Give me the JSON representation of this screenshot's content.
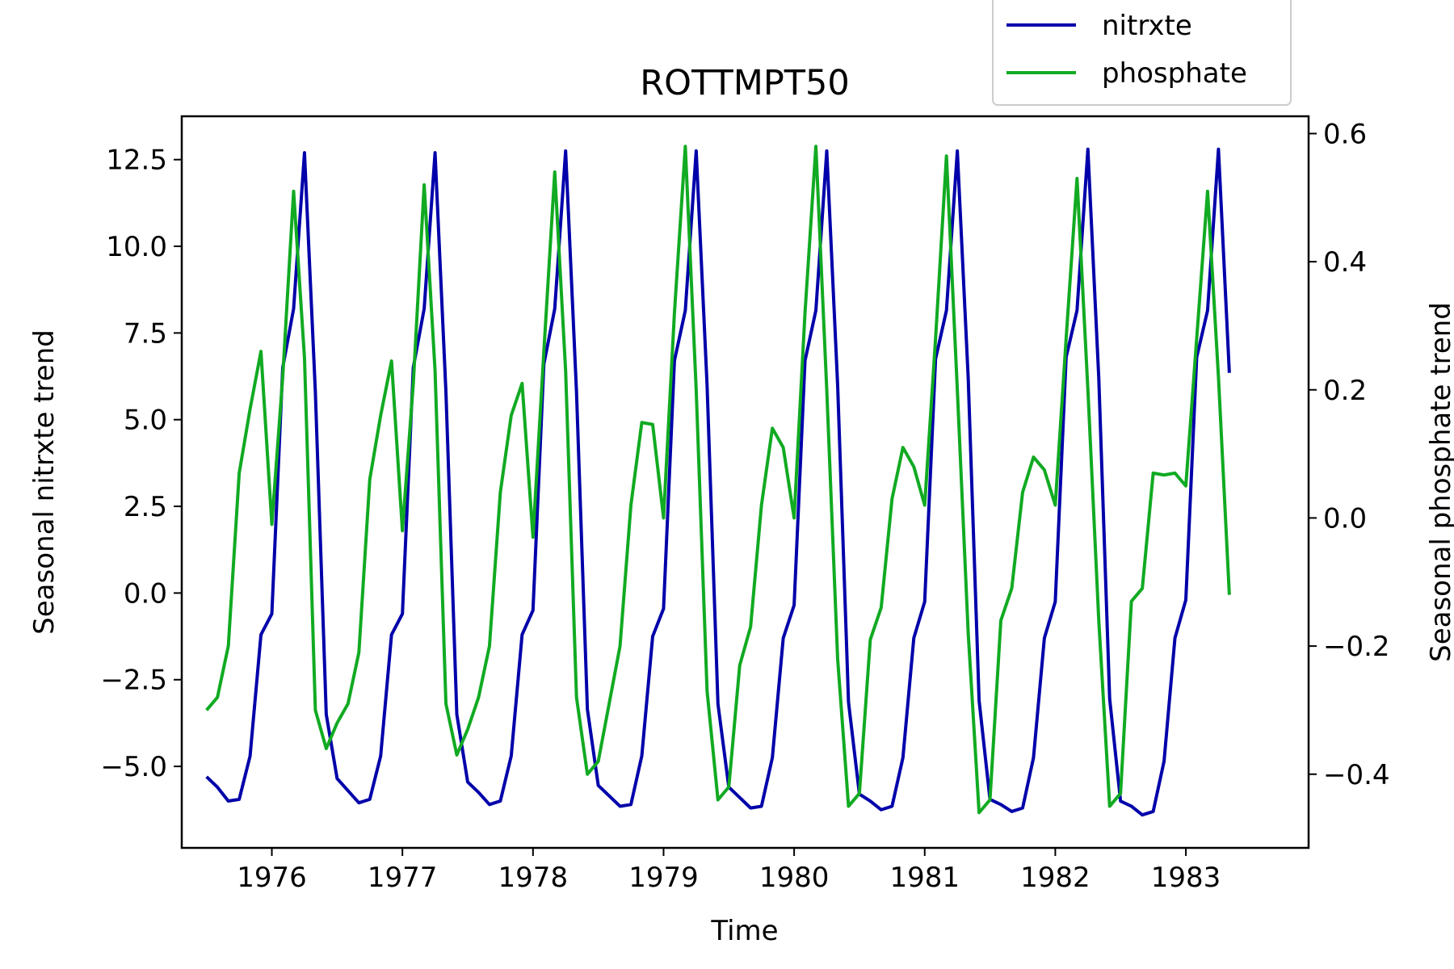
{
  "chart_data": {
    "type": "line",
    "title": "ROTTMPT50",
    "xlabel": "Time",
    "ylabel_left": "Seasonal nitrxte trend",
    "ylabel_right": "Seasonal phosphate trend",
    "xlim": [
      1975.31,
      1983.94
    ],
    "ylim_left": [
      -7.35,
      13.75
    ],
    "ylim_right": [
      -0.515,
      0.627
    ],
    "x_ticks": [
      1976,
      1977,
      1978,
      1979,
      1980,
      1981,
      1982,
      1983
    ],
    "x_tick_labels": [
      "1976",
      "1977",
      "1978",
      "1979",
      "1980",
      "1981",
      "1982",
      "1983"
    ],
    "y_left_ticks": [
      -5.0,
      -2.5,
      0.0,
      2.5,
      5.0,
      7.5,
      10.0,
      12.5
    ],
    "y_left_tick_labels": [
      "−5.0",
      "−2.5",
      "0.0",
      "2.5",
      "5.0",
      "7.5",
      "10.0",
      "12.5"
    ],
    "y_right_ticks": [
      -0.4,
      -0.2,
      0.0,
      0.2,
      0.4,
      0.6
    ],
    "y_right_tick_labels": [
      "−0.4",
      "−0.2",
      "0.0",
      "0.2",
      "0.4",
      "0.6"
    ],
    "grid": false,
    "legend_position": "top-right",
    "x_start": 1975.5,
    "x_step": 0.08333,
    "series": [
      {
        "name": "nitrxte",
        "color": "#0000aa",
        "axis": "left",
        "values": [
          -5.3,
          -5.6,
          -6.0,
          -5.95,
          -4.7,
          -1.2,
          -0.6,
          6.5,
          8.2,
          12.7,
          5.8,
          -3.5,
          -5.35,
          -5.7,
          -6.05,
          -5.95,
          -4.7,
          -1.2,
          -0.6,
          6.5,
          8.2,
          12.7,
          5.8,
          -3.5,
          -5.45,
          -5.75,
          -6.1,
          -6.0,
          -4.7,
          -1.2,
          -0.5,
          6.6,
          8.2,
          12.75,
          5.8,
          -3.35,
          -5.55,
          -5.85,
          -6.15,
          -6.1,
          -4.7,
          -1.25,
          -0.45,
          6.7,
          8.15,
          12.75,
          6.0,
          -3.2,
          -5.6,
          -5.9,
          -6.2,
          -6.15,
          -4.75,
          -1.3,
          -0.35,
          6.7,
          8.15,
          12.75,
          6.0,
          -3.15,
          -5.8,
          -6.0,
          -6.25,
          -6.15,
          -4.75,
          -1.3,
          -0.25,
          6.75,
          8.15,
          12.75,
          6.2,
          -3.1,
          -5.95,
          -6.1,
          -6.3,
          -6.2,
          -4.75,
          -1.3,
          -0.25,
          6.8,
          8.15,
          12.8,
          6.2,
          -3.05,
          -6.0,
          -6.15,
          -6.4,
          -6.3,
          -4.85,
          -1.3,
          -0.2,
          6.8,
          8.15,
          12.8,
          6.35
        ]
      },
      {
        "name": "phosphate",
        "color": "#11aa22",
        "axis": "left_right",
        "values": [
          -0.3,
          -0.28,
          -0.2,
          0.07,
          0.17,
          0.26,
          -0.01,
          0.22,
          0.51,
          0.25,
          -0.3,
          -0.36,
          -0.32,
          -0.29,
          -0.21,
          0.06,
          0.16,
          0.245,
          -0.02,
          0.21,
          0.52,
          0.23,
          -0.29,
          -0.37,
          -0.33,
          -0.28,
          -0.2,
          0.04,
          0.16,
          0.21,
          -0.03,
          0.26,
          0.54,
          0.23,
          -0.28,
          -0.4,
          -0.38,
          -0.29,
          -0.2,
          0.02,
          0.149,
          0.146,
          0.0,
          0.32,
          0.58,
          0.2,
          -0.27,
          -0.44,
          -0.42,
          -0.23,
          -0.17,
          0.02,
          0.14,
          0.11,
          0.0,
          0.32,
          0.58,
          0.2,
          -0.22,
          -0.45,
          -0.43,
          -0.19,
          -0.14,
          0.03,
          0.11,
          0.08,
          0.02,
          0.28,
          0.565,
          0.2,
          -0.18,
          -0.46,
          -0.44,
          -0.16,
          -0.11,
          0.04,
          0.095,
          0.075,
          0.02,
          0.28,
          0.53,
          0.2,
          -0.16,
          -0.45,
          -0.43,
          -0.13,
          -0.11,
          0.07,
          0.067,
          0.07,
          0.05,
          0.28,
          0.51,
          0.22,
          -0.12
        ]
      }
    ]
  }
}
